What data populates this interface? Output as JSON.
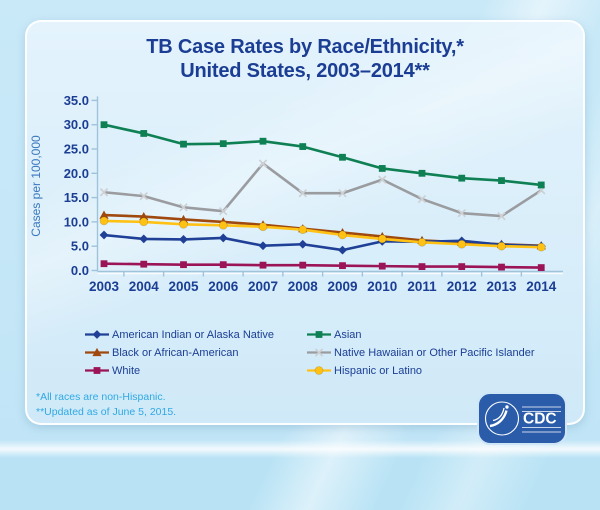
{
  "slide": {
    "title_line1": "TB Case Rates by Race/Ethnicity,*",
    "title_line2": "United States, 2003–2014**",
    "footnote1": "*All races are non-Hispanic.",
    "footnote2": "**Updated as of June 5, 2015.",
    "logo_text": "CDC",
    "title_color": "#1b3e94",
    "footnote_color": "#2fa9e3"
  },
  "chart_data": {
    "type": "line",
    "title": "TB Case Rates by Race/Ethnicity, United States, 2003–2014",
    "xlabel": "",
    "ylabel": "Cases per 100,000",
    "ylim": [
      0,
      35
    ],
    "ytick_step": 5,
    "ytick_labels": [
      "0.0",
      "5.0",
      "10.0",
      "15.0",
      "20.0",
      "25.0",
      "30.0",
      "35.0"
    ],
    "categories": [
      "2003",
      "2004",
      "2005",
      "2006",
      "2007",
      "2008",
      "2009",
      "2010",
      "2011",
      "2012",
      "2013",
      "2014"
    ],
    "grid": false,
    "legend_position": "bottom",
    "series": [
      {
        "name": "American Indian or Alaska Native",
        "color": "#1f4096",
        "marker": "diamond",
        "values": [
          7.3,
          6.5,
          6.4,
          6.7,
          5.1,
          5.4,
          4.2,
          6.0,
          5.9,
          6.1,
          5.3,
          5.0
        ]
      },
      {
        "name": "Asian",
        "color": "#0f8054",
        "marker": "square",
        "values": [
          30.0,
          28.2,
          26.0,
          26.1,
          26.6,
          25.5,
          23.3,
          21.0,
          20.0,
          19.0,
          18.5,
          17.6
        ]
      },
      {
        "name": "Black or African-American",
        "color": "#a0490f",
        "marker": "triangle",
        "values": [
          11.4,
          11.1,
          10.5,
          10.0,
          9.4,
          8.6,
          7.8,
          7.0,
          6.2,
          5.8,
          5.4,
          5.1
        ]
      },
      {
        "name": "Native Hawaiian or Other Pacific Islander",
        "color": "#9a9ca0",
        "marker": "x",
        "values": [
          16.1,
          15.3,
          13.0,
          12.2,
          22.0,
          15.9,
          15.9,
          18.7,
          14.7,
          11.8,
          11.2,
          16.5
        ]
      },
      {
        "name": "White",
        "color": "#9c1458",
        "marker": "square",
        "values": [
          1.4,
          1.3,
          1.2,
          1.2,
          1.1,
          1.1,
          1.0,
          0.9,
          0.8,
          0.8,
          0.7,
          0.6
        ]
      },
      {
        "name": "Hispanic or Latino",
        "color": "#ffc214",
        "marker": "circle",
        "values": [
          10.2,
          10.0,
          9.5,
          9.3,
          9.0,
          8.4,
          7.3,
          6.5,
          5.8,
          5.4,
          5.0,
          4.8
        ]
      }
    ],
    "legend_order": [
      0,
      1,
      2,
      3,
      4,
      5
    ],
    "draw_order": [
      3,
      1,
      2,
      0,
      4,
      5
    ]
  }
}
